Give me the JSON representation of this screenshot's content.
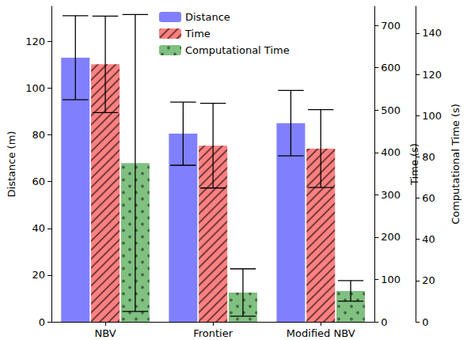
{
  "chart_data": {
    "type": "bar",
    "categories": [
      "NBV",
      "Frontier",
      "Modified NBV"
    ],
    "ylabel": "Distance (m)",
    "ylim": [
      0,
      135
    ],
    "yticks": [
      0,
      20,
      40,
      60,
      80,
      100,
      120
    ],
    "y2label": "Time (s)",
    "y2lim": [
      0,
      745
    ],
    "y2ticks": [
      0,
      100,
      200,
      300,
      400,
      500,
      600,
      700
    ],
    "y3label": "Computational Time (s)",
    "y3lim": [
      0,
      153
    ],
    "y3ticks": [
      0,
      20,
      40,
      60,
      80,
      100,
      120,
      140
    ],
    "legend": "upper center",
    "grid": false,
    "series": [
      {
        "name": "Distance",
        "color": "#8080ff",
        "axis": "y",
        "values": [
          113,
          80.5,
          85
        ],
        "errors": [
          18,
          13.5,
          14
        ]
      },
      {
        "name": "Time",
        "color": "#ff8080",
        "axis": "y2",
        "values": [
          608,
          416,
          409
        ],
        "errors": [
          114,
          100,
          92
        ]
      },
      {
        "name": "Computational Time",
        "color": "#80c080",
        "axis": "y3",
        "values": [
          77,
          14.2,
          15
        ],
        "errors": [
          72,
          11.5,
          5
        ]
      }
    ]
  }
}
